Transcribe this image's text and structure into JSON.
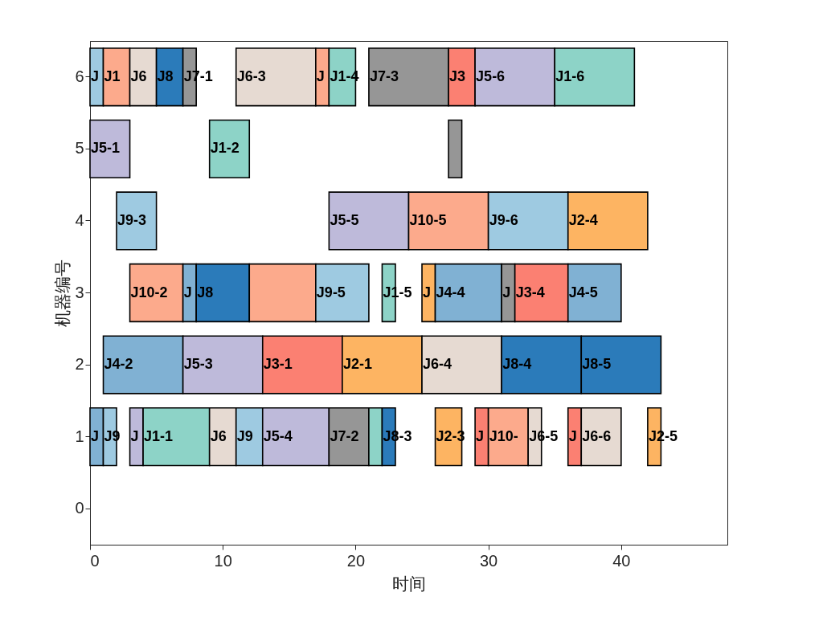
{
  "chart_data": {
    "type": "bar",
    "orientation": "horizontal",
    "xlabel": "时间",
    "ylabel": "机器编号",
    "categories": [
      "6",
      "5",
      "4",
      "3",
      "2",
      "1",
      "0"
    ],
    "xlim": [
      0,
      48
    ],
    "xticks": [
      0,
      10,
      20,
      30,
      40
    ],
    "series": [
      {
        "base": [
          0,
          0,
          2,
          3,
          1,
          0,
          null
        ],
        "values": [
          1,
          3,
          3,
          4,
          6,
          1,
          null
        ],
        "colors": [
          "#9ecae1",
          "#bebada",
          "#9ecae1",
          "#fcaa8c",
          "#80b1d3",
          "#80b1d3",
          null
        ],
        "value_labels": [
          "J",
          "J5-1",
          "J9-3",
          "J10-2",
          "J4-2",
          "J",
          null
        ]
      },
      {
        "base": [
          1,
          9,
          18,
          7,
          7,
          1,
          null
        ],
        "values": [
          2,
          3,
          6,
          1,
          6,
          1,
          null
        ],
        "colors": [
          "#fcaa8c",
          "#8dd3c7",
          "#bebada",
          "#80b1d3",
          "#bebada",
          "#9ecae1",
          null
        ],
        "value_labels": [
          "J1",
          "J1-2",
          "J5-5",
          "J",
          "J5-3",
          "J9",
          null
        ]
      },
      {
        "base": [
          3,
          27,
          24,
          8,
          13,
          3,
          null
        ],
        "values": [
          2,
          1,
          6,
          4,
          6,
          1,
          null
        ],
        "colors": [
          "#e6dad2",
          "#969696",
          "#fcaa8c",
          "#2b7bba",
          "#fb8072",
          "#bebada",
          null
        ],
        "value_labels": [
          "J6",
          null,
          "J10-5",
          "J8",
          "J3-1",
          "J",
          null
        ]
      },
      {
        "base": [
          5,
          null,
          30,
          12,
          19,
          4,
          null
        ],
        "values": [
          2,
          null,
          6,
          5,
          6,
          5,
          null
        ],
        "colors": [
          "#2b7bba",
          null,
          "#9ecae1",
          "#fcaa8c",
          "#fdb462",
          "#8dd3c7",
          null
        ],
        "value_labels": [
          "J8",
          null,
          "J9-6",
          null,
          "J2-1",
          "J1-1",
          null
        ]
      },
      {
        "base": [
          7,
          null,
          36,
          17,
          25,
          9,
          null
        ],
        "values": [
          1,
          null,
          6,
          4,
          6,
          2,
          null
        ],
        "colors": [
          "#969696",
          null,
          "#fdb462",
          "#9ecae1",
          "#e6dad2",
          "#e6dad2",
          null
        ],
        "value_labels": [
          "J7-1",
          null,
          "J2-4",
          "J9-5",
          "J6-4",
          "J6",
          null
        ]
      },
      {
        "base": [
          11,
          null,
          null,
          22,
          31,
          11,
          null
        ],
        "values": [
          6,
          null,
          null,
          1,
          6,
          2,
          null
        ],
        "colors": [
          "#e6dad2",
          null,
          null,
          "#8dd3c7",
          "#2b7bba",
          "#9ecae1",
          null
        ],
        "value_labels": [
          "J6-3",
          null,
          null,
          "J1-5",
          "J8-4",
          "J9",
          null
        ]
      },
      {
        "base": [
          17,
          null,
          null,
          25,
          37,
          13,
          null
        ],
        "values": [
          1,
          null,
          null,
          1,
          6,
          5,
          null
        ],
        "colors": [
          "#fcaa8c",
          null,
          null,
          "#fdb462",
          "#2b7bba",
          "#bebada",
          null
        ],
        "value_labels": [
          "J",
          null,
          null,
          "J",
          "J8-5",
          "J5-4",
          null
        ]
      },
      {
        "base": [
          18,
          null,
          null,
          26,
          null,
          18,
          null
        ],
        "values": [
          2,
          null,
          null,
          5,
          null,
          3,
          null
        ],
        "colors": [
          "#8dd3c7",
          null,
          null,
          "#80b1d3",
          null,
          "#969696",
          null
        ],
        "value_labels": [
          "J1-4",
          null,
          null,
          "J4-4",
          null,
          "J7-2",
          null
        ]
      },
      {
        "base": [
          21,
          null,
          null,
          31,
          null,
          21,
          null
        ],
        "values": [
          6,
          null,
          null,
          1,
          null,
          1,
          null
        ],
        "colors": [
          "#969696",
          null,
          null,
          "#969696",
          null,
          "#8dd3c7",
          null
        ],
        "value_labels": [
          "J7-3",
          null,
          null,
          "J",
          null,
          null,
          null
        ]
      },
      {
        "base": [
          27,
          null,
          null,
          32,
          null,
          22,
          null
        ],
        "values": [
          2,
          null,
          null,
          4,
          null,
          1,
          null
        ],
        "colors": [
          "#fb8072",
          null,
          null,
          "#fb8072",
          null,
          "#2b7bba",
          null
        ],
        "value_labels": [
          "J3",
          null,
          null,
          "J3-4",
          null,
          "J8-3",
          null
        ]
      },
      {
        "base": [
          29,
          null,
          null,
          36,
          null,
          26,
          null
        ],
        "values": [
          6,
          null,
          null,
          4,
          null,
          2,
          null
        ],
        "colors": [
          "#bebada",
          null,
          null,
          "#80b1d3",
          null,
          "#fdb462",
          null
        ],
        "value_labels": [
          "J5-6",
          null,
          null,
          "J4-5",
          null,
          "J2-3",
          null
        ]
      },
      {
        "base": [
          35,
          null,
          null,
          null,
          null,
          29,
          null
        ],
        "values": [
          6,
          null,
          null,
          null,
          null,
          1,
          null
        ],
        "colors": [
          "#8dd3c7",
          null,
          null,
          null,
          null,
          "#fb8072",
          null
        ],
        "value_labels": [
          "J1-6",
          null,
          null,
          null,
          null,
          "J",
          null
        ]
      },
      {
        "base": [
          null,
          null,
          null,
          null,
          null,
          30,
          null
        ],
        "values": [
          null,
          null,
          null,
          null,
          null,
          3,
          null
        ],
        "colors": [
          null,
          null,
          null,
          null,
          null,
          "#fcaa8c",
          null
        ],
        "value_labels": [
          null,
          null,
          null,
          null,
          null,
          "J10-",
          null
        ]
      },
      {
        "base": [
          null,
          null,
          null,
          null,
          null,
          33,
          null
        ],
        "values": [
          null,
          null,
          null,
          null,
          null,
          1,
          null
        ],
        "colors": [
          null,
          null,
          null,
          null,
          null,
          "#e6dad2",
          null
        ],
        "value_labels": [
          null,
          null,
          null,
          null,
          null,
          "J6-5",
          null
        ]
      },
      {
        "base": [
          null,
          null,
          null,
          null,
          null,
          36,
          null
        ],
        "values": [
          null,
          null,
          null,
          null,
          null,
          1,
          null
        ],
        "colors": [
          null,
          null,
          null,
          null,
          null,
          "#fb8072",
          null
        ],
        "value_labels": [
          null,
          null,
          null,
          null,
          null,
          "J",
          null
        ]
      },
      {
        "base": [
          null,
          null,
          null,
          null,
          null,
          37,
          null
        ],
        "values": [
          null,
          null,
          null,
          null,
          null,
          3,
          null
        ],
        "colors": [
          null,
          null,
          null,
          null,
          null,
          "#e6dad2",
          null
        ],
        "value_labels": [
          null,
          null,
          null,
          null,
          null,
          "J6-6",
          null
        ]
      },
      {
        "base": [
          null,
          null,
          null,
          null,
          null,
          42,
          null
        ],
        "values": [
          null,
          null,
          null,
          null,
          null,
          1,
          null
        ],
        "colors": [
          null,
          null,
          null,
          null,
          null,
          "#fdb462",
          null
        ],
        "value_labels": [
          null,
          null,
          null,
          null,
          null,
          "J2-5",
          null
        ]
      }
    ]
  }
}
